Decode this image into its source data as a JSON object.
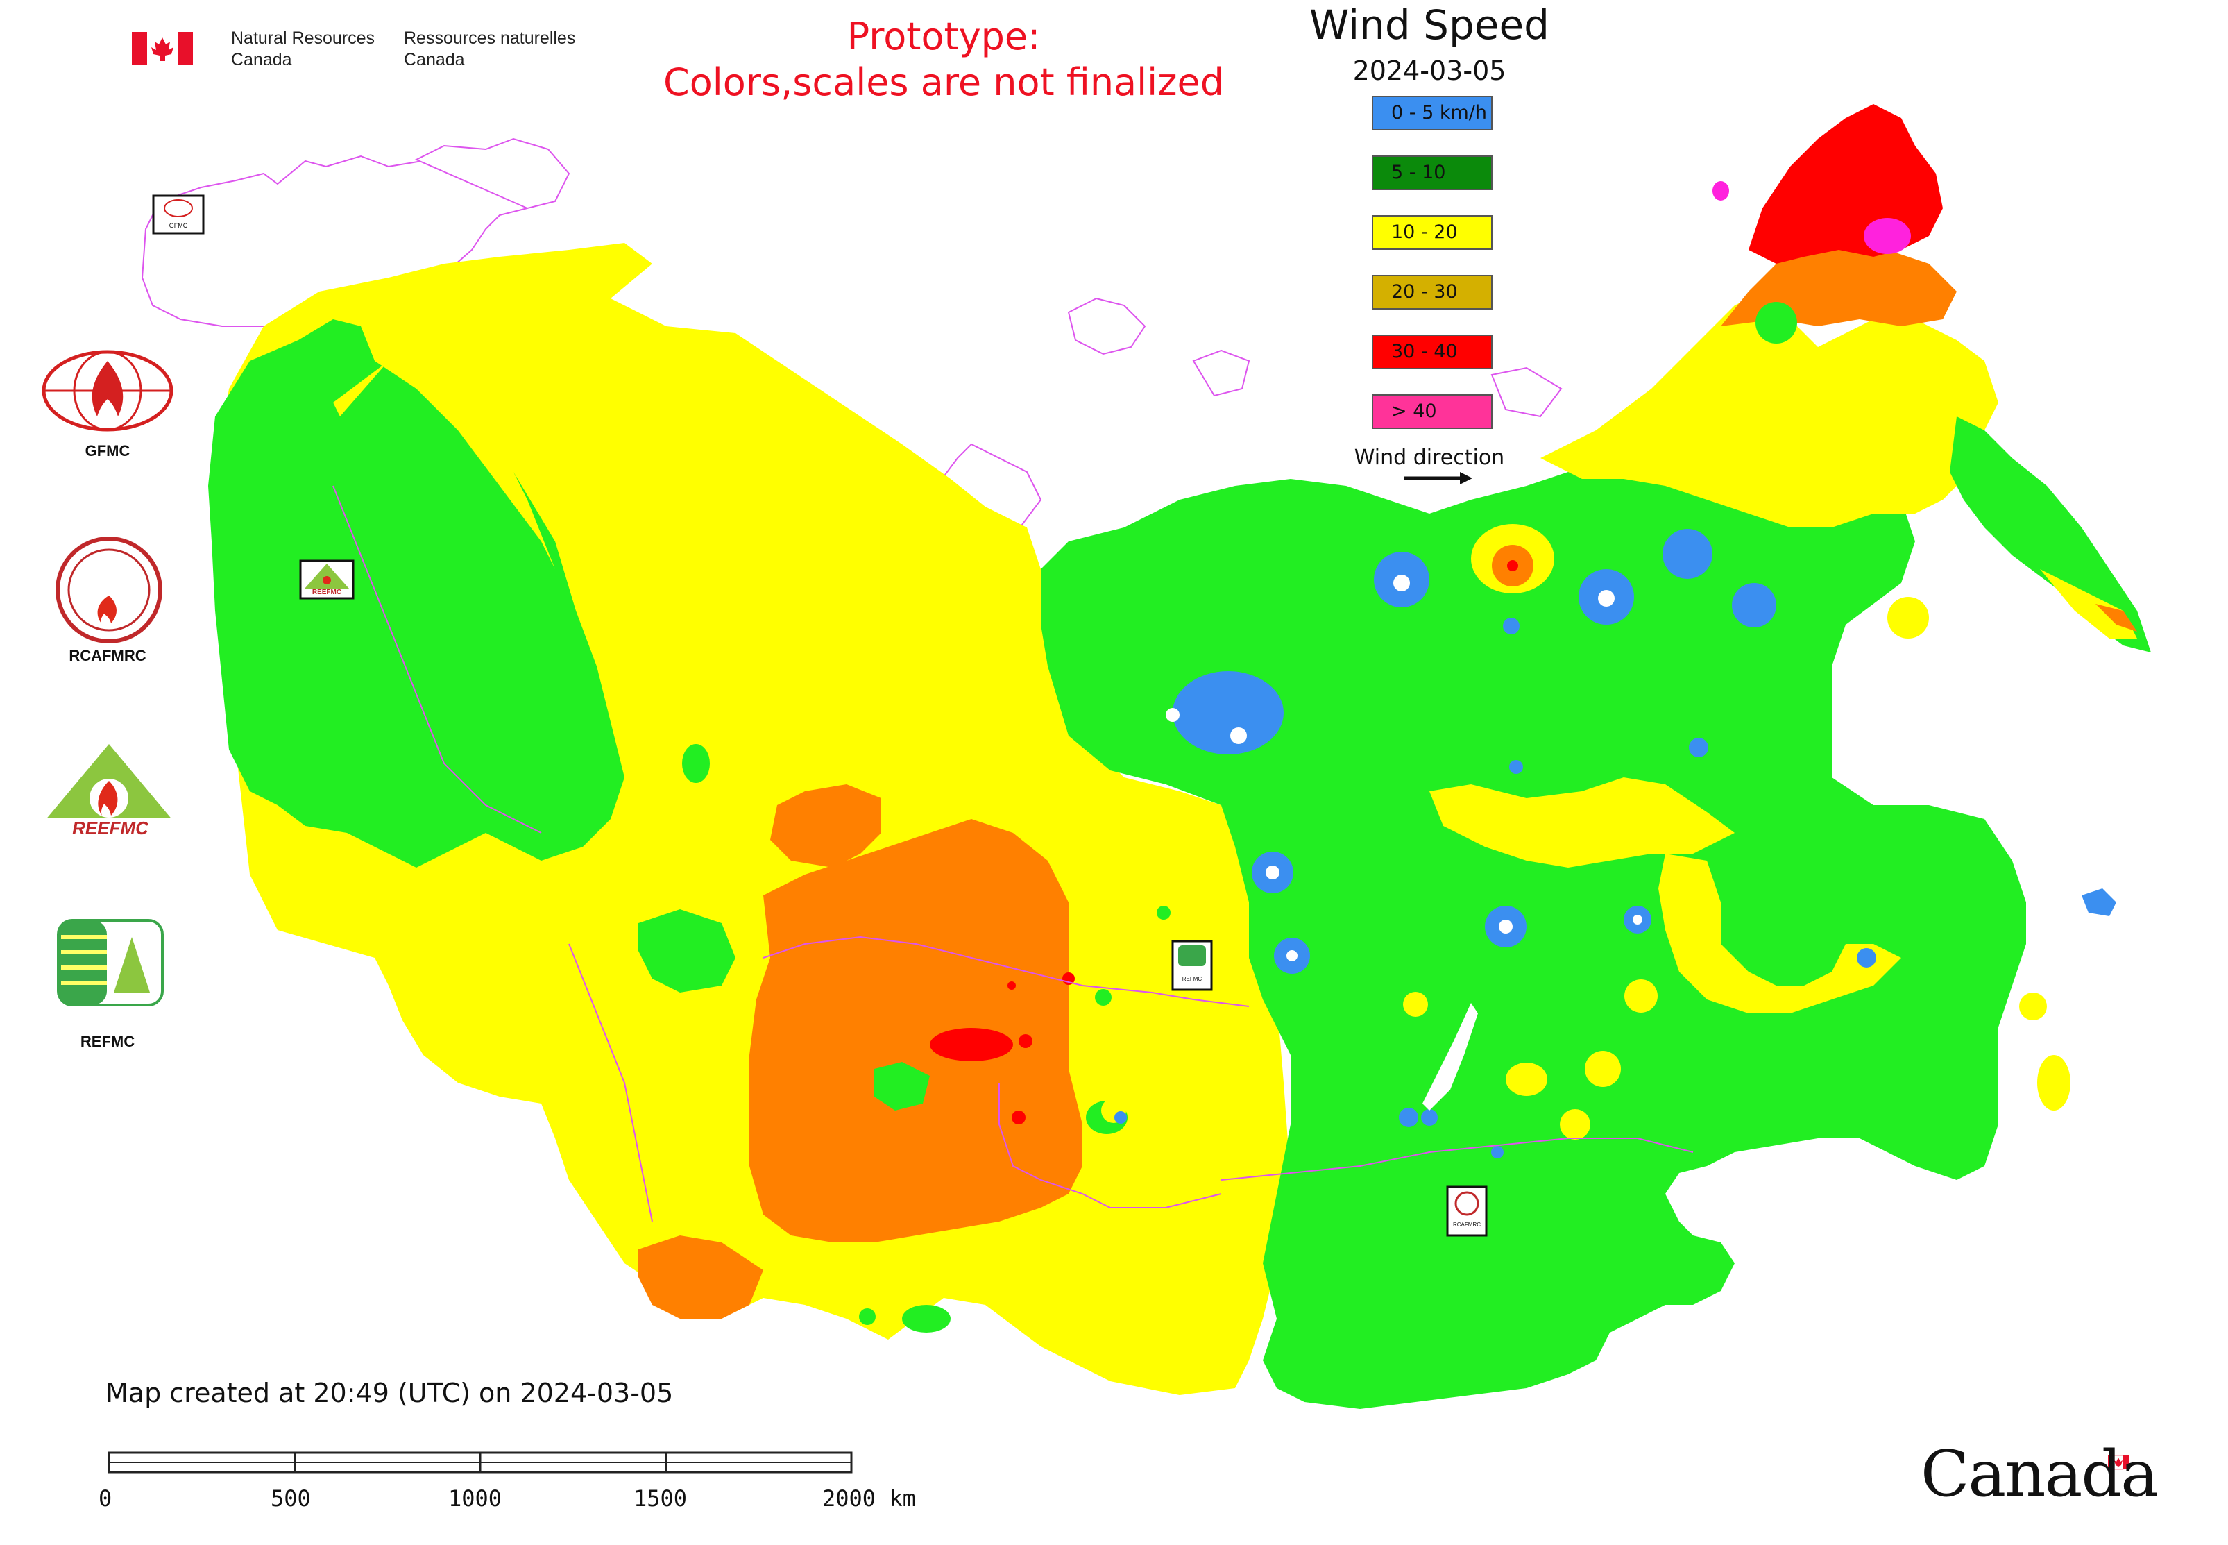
{
  "header": {
    "nrcan_en_line1": "Natural Resources",
    "nrcan_en_line2": "Canada",
    "nrcan_fr_line1": "Ressources naturelles",
    "nrcan_fr_line2": "Canada",
    "prototype_line1": "Prototype:",
    "prototype_line2": "Colors,scales are not finalized"
  },
  "legend": {
    "title": "Wind Speed",
    "date": "2024-03-05",
    "classes": [
      {
        "label": "0 - 5 km/h",
        "color": "#3b8ff0"
      },
      {
        "label": "5 - 10",
        "color": "#0b8a0b"
      },
      {
        "label": "10 - 20",
        "color": "#ffff00"
      },
      {
        "label": "20 - 30",
        "color": "#d4b000"
      },
      {
        "label": "30 - 40",
        "color": "#ff0000"
      },
      {
        "label": "> 40",
        "color": "#ff3399"
      }
    ],
    "direction_label": "Wind direction"
  },
  "map_colors": {
    "light_green": "#22ee22",
    "yellow": "#ffff00",
    "orange": "#ff8000",
    "red": "#ff0000",
    "magenta": "#ff22dd",
    "blue": "#3b8ff0",
    "border": "#dd55ee"
  },
  "organizations": {
    "gfmc": "GFMC",
    "rcafmrc": "RCAFMRC",
    "reefmc": "REEFMC",
    "refmc": "REFMC"
  },
  "map_markers": {
    "gfmc": "GFMC",
    "reefmc": "REEFMC",
    "refmc": "REFMC",
    "rcafmrc": "RCAFMRC"
  },
  "footer": {
    "created": "Map created at 20:49 (UTC) on 2024-03-05",
    "scale_ticks": [
      "0",
      "500",
      "1000",
      "1500",
      "2000 km"
    ],
    "wordmark": "Canada"
  }
}
